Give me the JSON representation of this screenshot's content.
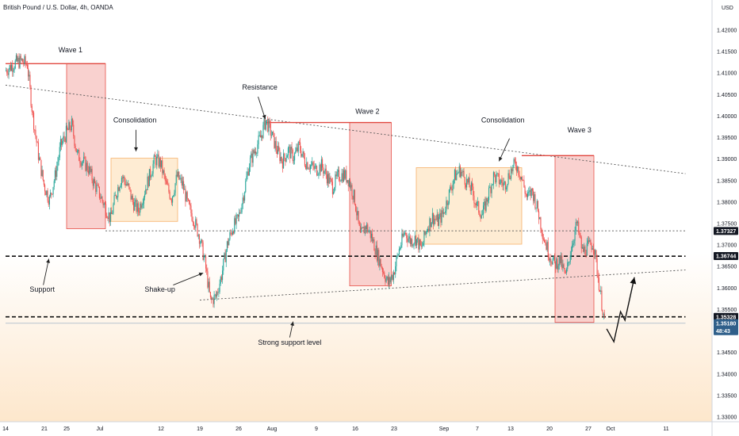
{
  "symbol_title": "British Pound / U.S. Dollar, 4h, OANDA",
  "currency": "USD",
  "colors": {
    "up": "#26a69a",
    "down": "#ef5350",
    "box_red": "#f8c9c7",
    "box_red_edge": "#e8524a",
    "box_orange": "#fde4c0",
    "box_orange_edge": "#f7b26b",
    "bg_bottom": "#fde7cc",
    "tag_dark": "#131722",
    "tag_blue": "#2f5f8a"
  },
  "chart_data": {
    "type": "candlestick",
    "y_axis": {
      "min": 1.325,
      "max": 1.4265,
      "ticks": [
        "1.42000",
        "1.41500",
        "1.41000",
        "1.40500",
        "1.40000",
        "1.39500",
        "1.39000",
        "1.38500",
        "1.38000",
        "1.37500",
        "1.37000",
        "1.36500",
        "1.36000",
        "1.35500",
        "1.35000",
        "1.34500",
        "1.34000",
        "1.33500",
        "1.33000"
      ],
      "tick_values": [
        1.42,
        1.415,
        1.41,
        1.405,
        1.4,
        1.395,
        1.39,
        1.385,
        1.38,
        1.375,
        1.37,
        1.365,
        1.36,
        1.355,
        1.35,
        1.345,
        1.34,
        1.335,
        1.33
      ]
    },
    "x_axis": {
      "ticks": [
        "14",
        "21",
        "25",
        "Jul",
        "12",
        "19",
        "26",
        "Aug",
        "9",
        "16",
        "23",
        "Sep",
        "7",
        "13",
        "20",
        "27",
        "Oct",
        "11"
      ],
      "tick_days": [
        -17,
        -10,
        -6,
        0,
        11,
        18,
        25,
        31,
        39,
        46,
        53,
        62,
        68,
        74,
        81,
        88,
        92,
        102
      ]
    },
    "price_tags": [
      {
        "label": "1.37327",
        "value": 1.37327,
        "style": "dark"
      },
      {
        "label": "1.36744",
        "value": 1.36744,
        "style": "dark"
      },
      {
        "label": "1.35328",
        "value": 1.35328,
        "style": "dark"
      },
      {
        "label": "1.35180",
        "value": 1.3518,
        "style": "blue",
        "sub": "48:43"
      }
    ],
    "close_series": [
      [
        -17,
        1.4105
      ],
      [
        -16,
        1.4115
      ],
      [
        -15,
        1.4125
      ],
      [
        -14,
        1.4128
      ],
      [
        -13,
        1.412
      ],
      [
        -12,
        1.4
      ],
      [
        -11,
        1.391
      ],
      [
        -10,
        1.384
      ],
      [
        -9,
        1.3805
      ],
      [
        -8,
        1.386
      ],
      [
        -7,
        1.393
      ],
      [
        -6,
        1.396
      ],
      [
        -5,
        1.398
      ],
      [
        -4,
        1.391
      ],
      [
        -3,
        1.3895
      ],
      [
        -2,
        1.3878
      ],
      [
        -1,
        1.3845
      ],
      [
        0,
        1.3818
      ],
      [
        1,
        1.379
      ],
      [
        2,
        1.376
      ],
      [
        3,
        1.382
      ],
      [
        4,
        1.386
      ],
      [
        5,
        1.384
      ],
      [
        6,
        1.38
      ],
      [
        7,
        1.378
      ],
      [
        8,
        1.382
      ],
      [
        9,
        1.386
      ],
      [
        10,
        1.39
      ],
      [
        11,
        1.389
      ],
      [
        12,
        1.384
      ],
      [
        13,
        1.381
      ],
      [
        14,
        1.386
      ],
      [
        15,
        1.384
      ],
      [
        16,
        1.379
      ],
      [
        17,
        1.376
      ],
      [
        18,
        1.372
      ],
      [
        19,
        1.366
      ],
      [
        20,
        1.357
      ],
      [
        21,
        1.358
      ],
      [
        22,
        1.363
      ],
      [
        23,
        1.37
      ],
      [
        24,
        1.374
      ],
      [
        25,
        1.376
      ],
      [
        26,
        1.382
      ],
      [
        27,
        1.389
      ],
      [
        28,
        1.392
      ],
      [
        29,
        1.395
      ],
      [
        30,
        1.399
      ],
      [
        31,
        1.3958
      ],
      [
        32,
        1.392
      ],
      [
        33,
        1.3895
      ],
      [
        34,
        1.392
      ],
      [
        35,
        1.3905
      ],
      [
        36,
        1.393
      ],
      [
        37,
        1.3895
      ],
      [
        38,
        1.3885
      ],
      [
        39,
        1.3875
      ],
      [
        40,
        1.3885
      ],
      [
        41,
        1.386
      ],
      [
        42,
        1.3835
      ],
      [
        43,
        1.386
      ],
      [
        44,
        1.3865
      ],
      [
        45,
        1.385
      ],
      [
        46,
        1.3805
      ],
      [
        47,
        1.372
      ],
      [
        48,
        1.3745
      ],
      [
        49,
        1.372
      ],
      [
        50,
        1.368
      ],
      [
        51,
        1.3645
      ],
      [
        52,
        1.361
      ],
      [
        53,
        1.3635
      ],
      [
        54,
        1.369
      ],
      [
        55,
        1.373
      ],
      [
        56,
        1.371
      ],
      [
        57,
        1.3715
      ],
      [
        58,
        1.369
      ],
      [
        59,
        1.374
      ],
      [
        60,
        1.3765
      ],
      [
        61,
        1.3755
      ],
      [
        62,
        1.3775
      ],
      [
        63,
        1.382
      ],
      [
        64,
        1.386
      ],
      [
        65,
        1.3875
      ],
      [
        66,
        1.385
      ],
      [
        67,
        1.383
      ],
      [
        68,
        1.379
      ],
      [
        69,
        1.377
      ],
      [
        70,
        1.3815
      ],
      [
        71,
        1.386
      ],
      [
        72,
        1.385
      ],
      [
        73,
        1.384
      ],
      [
        74,
        1.387
      ],
      [
        75,
        1.389
      ],
      [
        76,
        1.386
      ],
      [
        77,
        1.381
      ],
      [
        78,
        1.3825
      ],
      [
        79,
        1.378
      ],
      [
        80,
        1.372
      ],
      [
        81,
        1.368
      ],
      [
        82,
        1.3655
      ],
      [
        83,
        1.3665
      ],
      [
        84,
        1.3625
      ],
      [
        85,
        1.3695
      ],
      [
        86,
        1.375
      ],
      [
        87,
        1.3685
      ],
      [
        88,
        1.3695
      ],
      [
        89,
        1.3705
      ],
      [
        90,
        1.361
      ],
      [
        91,
        1.352
      ]
    ],
    "projection": [
      [
        91.3,
        1.3505
      ],
      [
        92.6,
        1.3475
      ],
      [
        93.8,
        1.3545
      ],
      [
        94.6,
        1.3525
      ],
      [
        96.3,
        1.3625
      ]
    ],
    "projection_arrow": [
      96.3,
      1.3625
    ],
    "boxes": [
      {
        "type": "red",
        "d1": -6,
        "d2": 1,
        "p1": 1.4122,
        "p2": 1.3738
      },
      {
        "type": "orange",
        "d1": 2,
        "d2": 14,
        "p1": 1.3902,
        "p2": 1.3755
      },
      {
        "type": "red",
        "d1": 45,
        "d2": 52.5,
        "p1": 1.3985,
        "p2": 1.3605
      },
      {
        "type": "orange",
        "d1": 57,
        "d2": 76,
        "p1": 1.388,
        "p2": 1.3702
      },
      {
        "type": "red",
        "d1": 82,
        "d2": 89,
        "p1": 1.3908,
        "p2": 1.352
      }
    ],
    "lines": [
      {
        "style": "dotted",
        "d1": -17,
        "p1": 1.4072,
        "d2": 105.5,
        "p2": 1.3866,
        "name": "resistance-line"
      },
      {
        "style": "dotted",
        "d1": 18,
        "p1": 1.3572,
        "d2": 105.5,
        "p2": 1.3642,
        "name": "lower-trendline"
      },
      {
        "style": "dotted",
        "d1": 1,
        "p1": 1.3733,
        "d2": 105.5,
        "p2": 1.3733,
        "name": "level-1-37327"
      },
      {
        "style": "thin",
        "d1": -17,
        "p1": 1.3518,
        "d2": 105.5,
        "p2": 1.3518,
        "name": "current-price-line"
      },
      {
        "style": "dashed",
        "d1": -17,
        "p1": 1.3674,
        "d2": 105.5,
        "p2": 1.3674,
        "name": "level-1-36744"
      },
      {
        "style": "dashed",
        "d1": -17,
        "p1": 1.3533,
        "d2": 105.5,
        "p2": 1.3533,
        "name": "level-1-35328"
      },
      {
        "style": "solid-red",
        "d1": -17,
        "p1": 1.4122,
        "d2": 1,
        "p2": 1.4122,
        "name": "wave1-top-line"
      },
      {
        "style": "solid-red",
        "d1": 30,
        "p1": 1.3985,
        "d2": 52.5,
        "p2": 1.3985,
        "name": "wave2-top-line"
      },
      {
        "style": "solid-red",
        "d1": 76,
        "p1": 1.3908,
        "d2": 89,
        "p2": 1.3908,
        "name": "wave3-top-line"
      }
    ],
    "annotations": [
      {
        "text": "Wave 1",
        "d": -5.3,
        "p": 1.4148
      },
      {
        "text": "Consolidation",
        "d": 6.3,
        "p": 1.3985
      },
      {
        "text": "Resistance",
        "d": 28.8,
        "p": 1.4062
      },
      {
        "text": "Wave 2",
        "d": 48.2,
        "p": 1.4005
      },
      {
        "text": "Consolidation",
        "d": 72.6,
        "p": 1.3985
      },
      {
        "text": "Wave 3",
        "d": 86.4,
        "p": 1.3962
      },
      {
        "text": "Support",
        "d": -10.4,
        "p": 1.3591
      },
      {
        "text": "Shake-up",
        "d": 10.8,
        "p": 1.3591
      },
      {
        "text": "Strong support level",
        "d": 34.2,
        "p": 1.3468
      }
    ],
    "arrows": [
      {
        "from": [
          73.8,
          1.3948
        ],
        "to": [
          71.9,
          1.3895
        ],
        "name": "consolidation-arrow-2"
      },
      {
        "from": [
          6.5,
          1.3968
        ],
        "to": [
          6.5,
          1.3918
        ],
        "name": "consolidation-arrow-1"
      },
      {
        "from": [
          28.5,
          1.4045
        ],
        "to": [
          29.8,
          1.3993
        ],
        "name": "resistance-arrow"
      },
      {
        "from": [
          -10.2,
          1.3607
        ],
        "to": [
          -9.2,
          1.3668
        ],
        "name": "support-arrow"
      },
      {
        "from": [
          13.2,
          1.3607
        ],
        "to": [
          18.6,
          1.3635
        ],
        "name": "shake-up-arrow"
      },
      {
        "from": [
          34.2,
          1.3485
        ],
        "to": [
          34.8,
          1.3522
        ],
        "name": "strong-support-arrow"
      }
    ]
  }
}
